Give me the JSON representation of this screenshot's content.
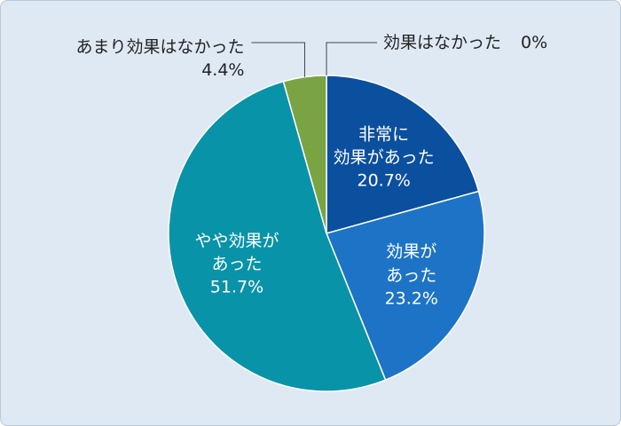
{
  "chart_data": {
    "type": "pie",
    "categories": [
      "非常に\n効果があった",
      "効果が\nあった",
      "やや効果が\nあった",
      "あまり効果はなかった",
      "効果はなかった"
    ],
    "values": [
      20.7,
      23.2,
      51.7,
      4.4,
      0
    ],
    "value_labels": [
      "20.7%",
      "23.2%",
      "51.7%",
      "4.4%",
      "0%"
    ],
    "colors": [
      "#0b4f9f",
      "#1d74c6",
      "#0993a8",
      "#7aa443",
      "#9aa7b3"
    ]
  }
}
